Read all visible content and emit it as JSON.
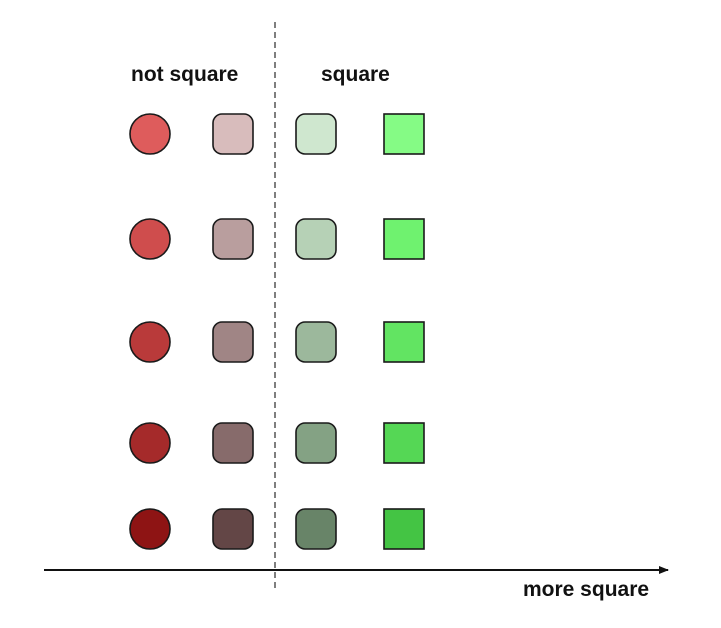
{
  "labels": {
    "not_square": "not square",
    "square": "square",
    "axis": "more square"
  },
  "shape_columns": [
    {
      "group": "not square",
      "shape": "circle",
      "fills": [
        "#de5c5c",
        "#cf4d4d",
        "#b93a3a",
        "#a52a2a",
        "#8e1414"
      ]
    },
    {
      "group": "not square",
      "shape": "rounded-square",
      "fills": [
        "#d8bcbc",
        "#b99e9e",
        "#a08585",
        "#876b6b",
        "#634646"
      ]
    },
    {
      "group": "square",
      "shape": "rounded-square",
      "fills": [
        "#cfe7cf",
        "#b6d1b6",
        "#9cb89c",
        "#84a284",
        "#688468"
      ]
    },
    {
      "group": "square",
      "shape": "square",
      "fills": [
        "#85fb85",
        "#6ff26f",
        "#62e462",
        "#55d755",
        "#44c444"
      ]
    }
  ],
  "colors": {
    "outline": "#1a1a1a",
    "axis": "#111111",
    "divider": "#555555"
  }
}
